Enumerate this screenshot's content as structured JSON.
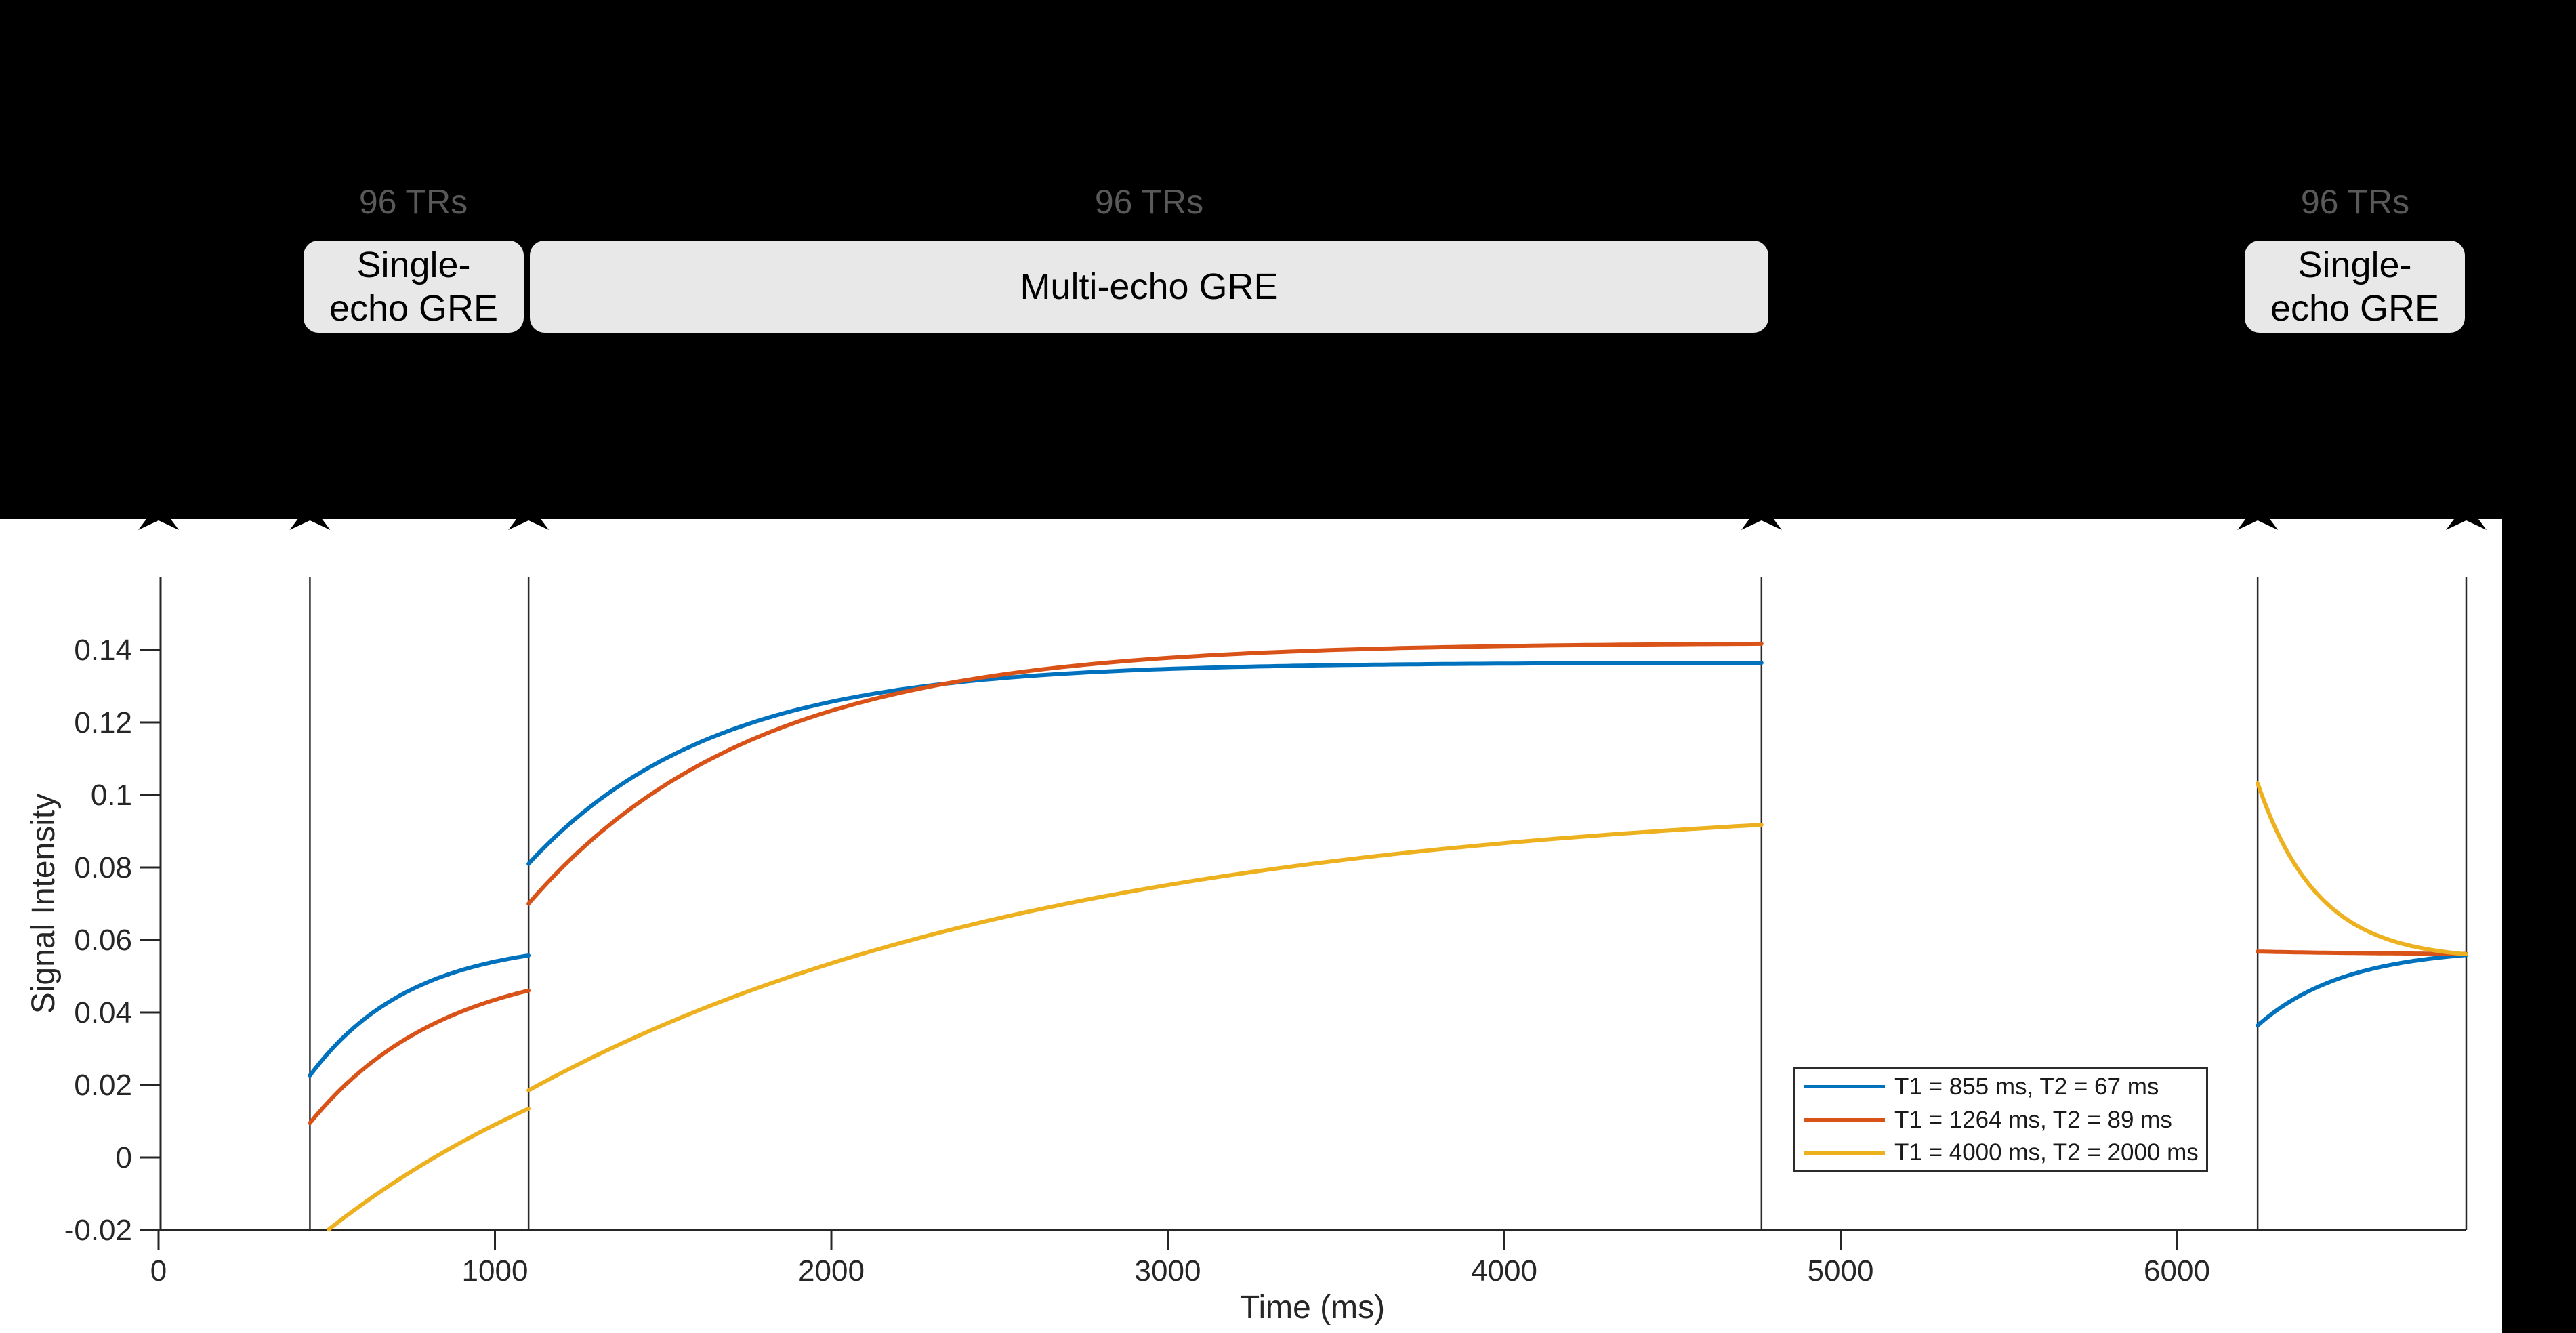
{
  "figure": {
    "background_color": "#000000",
    "plot_background_color": "#ffffff",
    "axis_color": "#262626",
    "divider_line_color": "#2a2a2a",
    "arrow_marker_color": "#000000"
  },
  "banner": {
    "box_fill_color": "#e9e8e8",
    "trs_text_color": "#595959",
    "blocks": [
      {
        "id": "single-echo-1",
        "label": "Single-echo GRE",
        "label_line1": "Single-",
        "label_line2": "echo GRE",
        "trs": "96 TRs",
        "time_range_ms": [
          450,
          1100
        ]
      },
      {
        "id": "multi-echo",
        "label": "Multi-echo GRE",
        "trs": "96 TRs",
        "time_range_ms": [
          1100,
          4765
        ]
      },
      {
        "id": "single-echo-2",
        "label": "Single-echo GRE",
        "label_line1": "Single-",
        "label_line2": "echo GRE",
        "trs": "96 TRs",
        "time_range_ms": [
          6240,
          6860
        ]
      }
    ]
  },
  "chart_data": {
    "type": "line",
    "title": "",
    "xlabel": "Time (ms)",
    "ylabel": "Signal Intensity",
    "xlim": [
      0,
      6860
    ],
    "ylim": [
      -0.02,
      0.16
    ],
    "x_ticks": [
      0,
      1000,
      2000,
      3000,
      4000,
      5000,
      6000
    ],
    "x_tick_labels": [
      "0",
      "1000",
      "2000",
      "3000",
      "4000",
      "5000",
      "6000"
    ],
    "y_ticks": [
      -0.02,
      0,
      0.02,
      0.04,
      0.06,
      0.08,
      0.1,
      0.12,
      0.14
    ],
    "y_tick_labels": [
      "-0.02",
      "0",
      "0.02",
      "0.04",
      "0.06",
      "0.08",
      "0.1",
      "0.12",
      "0.14"
    ],
    "grid": false,
    "legend_position": "inside lower right",
    "section_divider_times_ms": [
      450,
      1100,
      4765,
      6240,
      6860
    ],
    "arrow_marker_times_ms": [
      0,
      450,
      1100,
      4765,
      6240,
      6860
    ],
    "series": [
      {
        "name": "T1 = 855 ms, T2 = 67 ms",
        "color": "#0072BD",
        "segments": [
          {
            "t_start": 450,
            "t_end": 1100,
            "v_start": 0.0226,
            "v_end": 0.0557,
            "v_inf": 0.06,
            "tau_ms": 300
          },
          {
            "t_start": 1100,
            "t_end": 4765,
            "v_start": 0.081,
            "v_end": 0.1364,
            "v_inf": 0.1365,
            "tau_ms": 550
          },
          {
            "t_start": 6240,
            "t_end": 6860,
            "v_start": 0.0364,
            "v_end": 0.0558,
            "v_inf": 0.0578,
            "tau_ms": 260
          }
        ]
      },
      {
        "name": "T1 = 1264 ms, T2 = 89 ms",
        "color": "#D95319",
        "segments": [
          {
            "t_start": 450,
            "t_end": 1100,
            "v_start": 0.0095,
            "v_end": 0.046,
            "v_inf": 0.055,
            "tau_ms": 400
          },
          {
            "t_start": 1100,
            "t_end": 4765,
            "v_start": 0.07,
            "v_end": 0.1417,
            "v_inf": 0.142,
            "tau_ms": 670
          },
          {
            "t_start": 6240,
            "t_end": 6860,
            "v_start": 0.0568,
            "v_end": 0.0561,
            "v_inf": 0.056,
            "tau_ms": 400
          }
        ]
      },
      {
        "name": "T1 = 4000 ms, T2 = 2000 ms",
        "color": "#EDB120",
        "segments": [
          {
            "t_start": 450,
            "t_end": 1100,
            "v_start": -0.024,
            "v_end": 0.0135,
            "v_inf": 0.06,
            "tau_ms": 1100
          },
          {
            "t_start": 1100,
            "t_end": 4765,
            "v_start": 0.0185,
            "v_end": 0.0918,
            "v_inf": 0.1,
            "tau_ms": 1600
          },
          {
            "t_start": 6240,
            "t_end": 6860,
            "v_start": 0.1032,
            "v_end": 0.0561,
            "v_inf": 0.0545,
            "tau_ms": 180
          }
        ]
      }
    ],
    "annotations": {
      "blue_red_crossing_ms": 2330,
      "convergence_value_right_section": 0.056
    }
  }
}
